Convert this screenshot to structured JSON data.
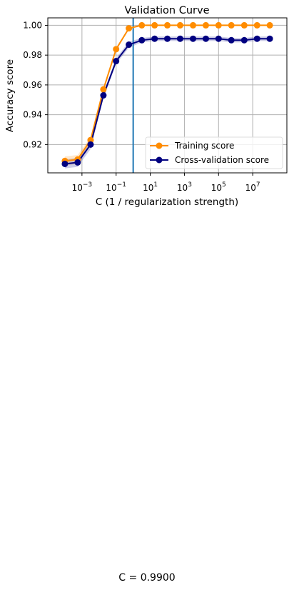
{
  "chart_data": {
    "type": "line",
    "title": "Validation Curve",
    "xlabel": "C (1 / regularization strength)",
    "ylabel": "Accuracy score",
    "xscale": "log",
    "xlim": [
      1e-05,
      1000000000.0
    ],
    "ylim": [
      0.901,
      1.005
    ],
    "x": [
      0.0001,
      0.00056,
      0.0032,
      0.018,
      0.1,
      0.56,
      3.2,
      18,
      100,
      560,
      3200,
      18000,
      100000,
      560000,
      3200000,
      18000000,
      100000000
    ],
    "xticks": [
      0.001,
      0.1,
      10,
      1000,
      100000,
      10000000
    ],
    "xtick_labels": [
      {
        "base": "10",
        "exp": "−3"
      },
      {
        "base": "10",
        "exp": "−1"
      },
      {
        "base": "10",
        "exp": "1"
      },
      {
        "base": "10",
        "exp": "3"
      },
      {
        "base": "10",
        "exp": "5"
      },
      {
        "base": "10",
        "exp": "7"
      }
    ],
    "yticks": [
      0.92,
      0.94,
      0.96,
      0.98,
      1.0
    ],
    "ytick_labels": [
      "0.92",
      "0.94",
      "0.96",
      "0.98",
      "1.00"
    ],
    "grid": true,
    "legend_position": "lower-right",
    "vline": {
      "x": 1.0,
      "color": "#1f77b4"
    },
    "series": [
      {
        "name": "Training score",
        "color": "#ff8c00",
        "values": [
          0.909,
          0.91,
          0.923,
          0.957,
          0.984,
          0.998,
          1.0,
          1.0,
          1.0,
          1.0,
          1.0,
          1.0,
          1.0,
          1.0,
          1.0,
          1.0,
          1.0
        ],
        "band": [
          0.003,
          0.003,
          0.002,
          0.001,
          0.001,
          0.0005,
          0,
          0,
          0,
          0,
          0,
          0,
          0,
          0,
          0,
          0,
          0
        ]
      },
      {
        "name": "Cross-validation score",
        "color": "#000080",
        "values": [
          0.907,
          0.908,
          0.92,
          0.953,
          0.976,
          0.987,
          0.99,
          0.991,
          0.991,
          0.991,
          0.991,
          0.991,
          0.991,
          0.99,
          0.99,
          0.991,
          0.991
        ],
        "band": [
          0.003,
          0.003,
          0.003,
          0.002,
          0.002,
          0.002,
          0.0015,
          0.0015,
          0.0015,
          0.0015,
          0.0015,
          0.0015,
          0.0015,
          0.0015,
          0.0015,
          0.0015,
          0.0015
        ]
      }
    ]
  },
  "caption": "C = 0.9900"
}
